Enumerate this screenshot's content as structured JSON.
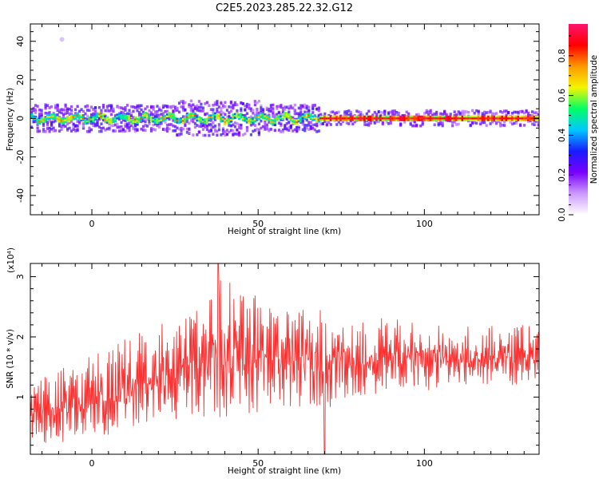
{
  "title": "C2E5.2023.285.22.32.G12",
  "chart_data": [
    {
      "type": "heatmap",
      "xlabel": "Height of straight line (km)",
      "ylabel": "Frequency (Hz)",
      "xlim": [
        -18.5,
        134.5
      ],
      "ylim": [
        -50,
        49
      ],
      "xticks": [
        0,
        50,
        100
      ],
      "yticks": [
        40,
        20,
        0,
        -20,
        -40
      ],
      "colorbar": {
        "label": "Normalized spectral amplitude",
        "range": [
          0,
          0.96
        ],
        "ticks": [
          0.0,
          0.2,
          0.4,
          0.6,
          0.8
        ],
        "tick_labels": [
          "0.0",
          "0.2",
          "0.4",
          "0.6",
          "0.8"
        ],
        "colormap": [
          "#ffffff",
          "#cc99ff",
          "#7a00ff",
          "#1a1aff",
          "#00c8ff",
          "#00ff66",
          "#f5f500",
          "#ff9900",
          "#ff0000",
          "#ff1470"
        ]
      },
      "band": {
        "center_frequency": 0,
        "core_halfwidth_hz": 1.5,
        "spread_halfwidth_hz": [
          4,
          8
        ],
        "note_high_amplitude_region_x": [
          68,
          134
        ]
      }
    },
    {
      "type": "line",
      "xlabel": "Height of straight line (km)",
      "ylabel": "SNR (10 * v/v)",
      "y_multiplier": "(x10⁴)",
      "xlim": [
        -18.5,
        134.5
      ],
      "ylim": [
        0.05,
        3.22
      ],
      "xticks": [
        0,
        50,
        100
      ],
      "yticks": [
        1,
        2,
        3
      ],
      "color": "#ff3030",
      "envelope": [
        {
          "x": -18.5,
          "low": 0.2,
          "high": 1.3
        },
        {
          "x": 0,
          "low": 0.3,
          "high": 1.7
        },
        {
          "x": 10,
          "low": 0.4,
          "high": 2.0
        },
        {
          "x": 20,
          "low": 0.5,
          "high": 2.2
        },
        {
          "x": 30,
          "low": 0.6,
          "high": 2.4
        },
        {
          "x": 38,
          "low": 0.6,
          "high": 3.2
        },
        {
          "x": 50,
          "low": 0.7,
          "high": 2.7
        },
        {
          "x": 60,
          "low": 0.8,
          "high": 2.6
        },
        {
          "x": 70,
          "low": 0.8,
          "high": 2.5
        },
        {
          "x": 80,
          "low": 1.0,
          "high": 2.4
        },
        {
          "x": 90,
          "low": 1.1,
          "high": 2.3
        },
        {
          "x": 100,
          "low": 1.1,
          "high": 2.3
        },
        {
          "x": 110,
          "low": 1.2,
          "high": 2.2
        },
        {
          "x": 120,
          "low": 1.2,
          "high": 2.2
        },
        {
          "x": 134.5,
          "low": 1.2,
          "high": 2.2
        }
      ],
      "spikes": [
        {
          "x": 38,
          "y": 3.22
        },
        {
          "x": 70,
          "y": 0.05
        }
      ]
    }
  ]
}
